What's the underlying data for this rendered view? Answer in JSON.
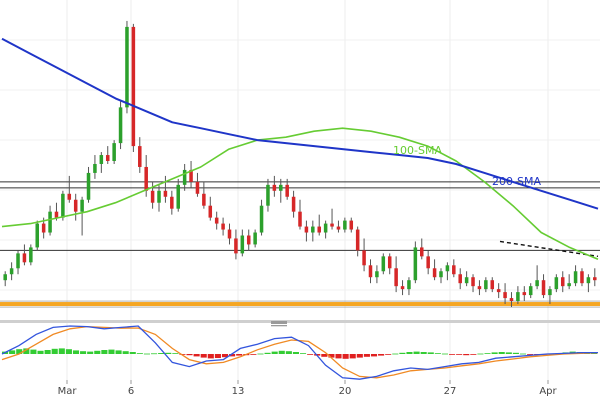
{
  "chart_data": [
    {
      "type": "candlestick",
      "x_axis": {
        "tick_labels": [
          "Mar",
          "6",
          "13",
          "20",
          "27",
          "Apr"
        ]
      },
      "y_axis": {
        "ylim": [
          0.0,
          1.0
        ],
        "visible": false
      },
      "colors": {
        "up": "#2ca02c",
        "down": "#d62728",
        "wick": "#555555",
        "sma100": "#66cc33",
        "sma200": "#1f35c8",
        "resistance_line": "#333333",
        "support_band": "#f5a623",
        "trendline": "#111111"
      },
      "ohlc": [
        [
          0.1,
          0.13,
          0.08,
          0.12
        ],
        [
          0.12,
          0.16,
          0.1,
          0.14
        ],
        [
          0.14,
          0.2,
          0.12,
          0.19
        ],
        [
          0.19,
          0.22,
          0.15,
          0.16
        ],
        [
          0.16,
          0.22,
          0.15,
          0.21
        ],
        [
          0.21,
          0.3,
          0.2,
          0.29
        ],
        [
          0.29,
          0.31,
          0.24,
          0.26
        ],
        [
          0.26,
          0.35,
          0.25,
          0.33
        ],
        [
          0.33,
          0.36,
          0.3,
          0.31
        ],
        [
          0.31,
          0.4,
          0.3,
          0.39
        ],
        [
          0.39,
          0.45,
          0.36,
          0.37
        ],
        [
          0.37,
          0.39,
          0.3,
          0.33
        ],
        [
          0.33,
          0.38,
          0.25,
          0.37
        ],
        [
          0.37,
          0.48,
          0.36,
          0.46
        ],
        [
          0.46,
          0.52,
          0.44,
          0.49
        ],
        [
          0.49,
          0.53,
          0.46,
          0.52
        ],
        [
          0.52,
          0.55,
          0.49,
          0.5
        ],
        [
          0.5,
          0.57,
          0.49,
          0.56
        ],
        [
          0.56,
          0.7,
          0.54,
          0.68
        ],
        [
          0.68,
          0.97,
          0.66,
          0.95
        ],
        [
          0.95,
          0.96,
          0.53,
          0.55
        ],
        [
          0.55,
          0.58,
          0.46,
          0.48
        ],
        [
          0.48,
          0.52,
          0.38,
          0.4
        ],
        [
          0.4,
          0.43,
          0.34,
          0.36
        ],
        [
          0.36,
          0.42,
          0.33,
          0.4
        ],
        [
          0.4,
          0.45,
          0.36,
          0.38
        ],
        [
          0.38,
          0.4,
          0.32,
          0.34
        ],
        [
          0.34,
          0.44,
          0.33,
          0.42
        ],
        [
          0.42,
          0.49,
          0.4,
          0.47
        ],
        [
          0.47,
          0.5,
          0.41,
          0.43
        ],
        [
          0.43,
          0.46,
          0.38,
          0.39
        ],
        [
          0.39,
          0.43,
          0.34,
          0.35
        ],
        [
          0.35,
          0.38,
          0.3,
          0.31
        ],
        [
          0.31,
          0.33,
          0.27,
          0.29
        ],
        [
          0.29,
          0.31,
          0.25,
          0.27
        ],
        [
          0.27,
          0.29,
          0.22,
          0.24
        ],
        [
          0.24,
          0.27,
          0.17,
          0.19
        ],
        [
          0.19,
          0.27,
          0.18,
          0.25
        ],
        [
          0.25,
          0.27,
          0.2,
          0.22
        ],
        [
          0.22,
          0.27,
          0.21,
          0.26
        ],
        [
          0.26,
          0.37,
          0.25,
          0.35
        ],
        [
          0.35,
          0.44,
          0.33,
          0.42
        ],
        [
          0.42,
          0.45,
          0.38,
          0.4
        ],
        [
          0.4,
          0.44,
          0.36,
          0.42
        ],
        [
          0.42,
          0.44,
          0.37,
          0.38
        ],
        [
          0.38,
          0.4,
          0.31,
          0.33
        ],
        [
          0.33,
          0.37,
          0.27,
          0.28
        ],
        [
          0.28,
          0.3,
          0.23,
          0.26
        ],
        [
          0.26,
          0.3,
          0.23,
          0.28
        ],
        [
          0.28,
          0.32,
          0.25,
          0.26
        ],
        [
          0.26,
          0.3,
          0.24,
          0.29
        ],
        [
          0.29,
          0.34,
          0.27,
          0.28
        ],
        [
          0.28,
          0.3,
          0.26,
          0.27
        ],
        [
          0.27,
          0.31,
          0.26,
          0.3
        ],
        [
          0.3,
          0.31,
          0.26,
          0.27
        ],
        [
          0.27,
          0.28,
          0.18,
          0.2
        ],
        [
          0.2,
          0.24,
          0.13,
          0.15
        ],
        [
          0.15,
          0.17,
          0.09,
          0.11
        ],
        [
          0.11,
          0.15,
          0.09,
          0.13
        ],
        [
          0.13,
          0.19,
          0.12,
          0.18
        ],
        [
          0.18,
          0.19,
          0.12,
          0.14
        ],
        [
          0.14,
          0.18,
          0.06,
          0.08
        ],
        [
          0.08,
          0.1,
          0.05,
          0.07
        ],
        [
          0.07,
          0.11,
          0.05,
          0.1
        ],
        [
          0.1,
          0.23,
          0.09,
          0.21
        ],
        [
          0.21,
          0.24,
          0.17,
          0.18
        ],
        [
          0.18,
          0.2,
          0.12,
          0.14
        ],
        [
          0.14,
          0.17,
          0.1,
          0.11
        ],
        [
          0.11,
          0.14,
          0.09,
          0.13
        ],
        [
          0.13,
          0.16,
          0.1,
          0.15
        ],
        [
          0.15,
          0.17,
          0.11,
          0.12
        ],
        [
          0.12,
          0.14,
          0.07,
          0.09
        ],
        [
          0.09,
          0.13,
          0.08,
          0.11
        ],
        [
          0.11,
          0.12,
          0.06,
          0.08
        ],
        [
          0.08,
          0.1,
          0.05,
          0.07
        ],
        [
          0.07,
          0.11,
          0.06,
          0.1
        ],
        [
          0.1,
          0.11,
          0.06,
          0.07
        ],
        [
          0.07,
          0.09,
          0.04,
          0.06
        ],
        [
          0.06,
          0.09,
          0.02,
          0.04
        ],
        [
          0.04,
          0.06,
          0.01,
          0.03
        ],
        [
          0.03,
          0.08,
          0.02,
          0.06
        ],
        [
          0.06,
          0.08,
          0.03,
          0.05
        ],
        [
          0.05,
          0.09,
          0.04,
          0.08
        ],
        [
          0.08,
          0.15,
          0.07,
          0.1
        ],
        [
          0.1,
          0.12,
          0.04,
          0.05
        ],
        [
          0.05,
          0.08,
          0.02,
          0.07
        ],
        [
          0.07,
          0.12,
          0.06,
          0.11
        ],
        [
          0.11,
          0.13,
          0.06,
          0.08
        ],
        [
          0.08,
          0.12,
          0.07,
          0.09
        ],
        [
          0.09,
          0.15,
          0.08,
          0.13
        ],
        [
          0.13,
          0.14,
          0.08,
          0.09
        ],
        [
          0.09,
          0.12,
          0.06,
          0.11
        ],
        [
          0.11,
          0.14,
          0.08,
          0.1
        ]
      ],
      "sma100": {
        "label": "100-SMA",
        "values": [
          0.28,
          0.29,
          0.31,
          0.33,
          0.36,
          0.4,
          0.44,
          0.48,
          0.54,
          0.57,
          0.58,
          0.6,
          0.61,
          0.6,
          0.58,
          0.55,
          0.5,
          0.43,
          0.35,
          0.26,
          0.21,
          0.17
        ]
      },
      "sma200": {
        "label": "200-SMA",
        "values": [
          0.91,
          0.86,
          0.81,
          0.76,
          0.71,
          0.67,
          0.63,
          0.61,
          0.59,
          0.57,
          0.56,
          0.55,
          0.54,
          0.53,
          0.52,
          0.51,
          0.49,
          0.46,
          0.43,
          0.4,
          0.37,
          0.34
        ]
      },
      "resistance_lines": [
        0.43,
        0.41,
        0.2
      ],
      "support_band": 0.02,
      "trendline": {
        "from_value": 0.23,
        "to_value": 0.18
      }
    },
    {
      "type": "macd",
      "histogram": [
        0.3,
        0.45,
        0.6,
        0.7,
        0.55,
        0.4,
        0.5,
        0.65,
        0.7,
        0.6,
        0.45,
        0.35,
        0.3,
        0.4,
        0.5,
        0.55,
        0.45,
        0.35,
        0.25,
        0.1,
        0.05,
        0.08,
        0.12,
        0.15,
        0.1,
        -0.05,
        -0.15,
        -0.3,
        -0.45,
        -0.55,
        -0.5,
        -0.4,
        -0.3,
        -0.2,
        -0.15,
        -0.1,
        0.05,
        0.15,
        0.3,
        0.4,
        0.35,
        0.25,
        0.1,
        -0.05,
        -0.2,
        -0.35,
        -0.45,
        -0.55,
        -0.6,
        -0.55,
        -0.45,
        -0.35,
        -0.3,
        -0.2,
        -0.1,
        0.05,
        0.15,
        0.25,
        0.3,
        0.25,
        0.2,
        0.1,
        0.05,
        -0.05,
        -0.1,
        -0.15,
        -0.1,
        0.05,
        0.1,
        0.2,
        0.25,
        0.2,
        0.15,
        0.05,
        -0.05,
        -0.1,
        -0.05,
        0.05,
        0.1,
        0.2,
        0.3,
        0.25,
        0.15,
        0.1
      ],
      "macd_line": [
        0.0,
        0.3,
        0.7,
        0.95,
        1.0,
        0.98,
        0.9,
        0.95,
        1.0,
        0.4,
        -0.3,
        -0.45,
        -0.25,
        -0.2,
        0.2,
        0.35,
        0.55,
        0.6,
        0.3,
        -0.4,
        -0.85,
        -0.9,
        -0.8,
        -0.6,
        -0.5,
        -0.55,
        -0.45,
        -0.35,
        -0.3,
        -0.15,
        -0.1,
        -0.05,
        0.0,
        0.02,
        0.05,
        0.05
      ],
      "signal_line": [
        -0.2,
        0.0,
        0.35,
        0.7,
        0.9,
        0.98,
        0.95,
        0.92,
        0.93,
        0.7,
        0.2,
        -0.2,
        -0.35,
        -0.3,
        -0.1,
        0.15,
        0.35,
        0.5,
        0.45,
        0.05,
        -0.5,
        -0.8,
        -0.85,
        -0.75,
        -0.6,
        -0.55,
        -0.5,
        -0.42,
        -0.35,
        -0.25,
        -0.18,
        -0.1,
        -0.05,
        0.0,
        0.02,
        0.04
      ],
      "colors": {
        "hist_pos": "#33cc33",
        "hist_neg": "#e02020",
        "macd": "#3355dd",
        "signal": "#f08a24"
      }
    }
  ]
}
